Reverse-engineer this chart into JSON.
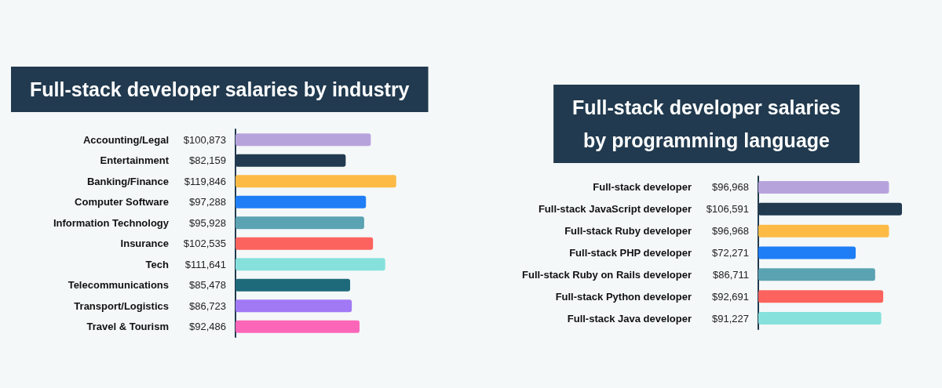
{
  "chart_data": [
    {
      "type": "bar",
      "orientation": "horizontal",
      "title": "Full-stack developer salaries by industry",
      "categories": [
        "Accounting/Legal",
        "Entertainment",
        "Banking/Finance",
        "Computer Software",
        "Information Technology",
        "Insurance",
        "Tech",
        "Telecommunications",
        "Transport/Logistics",
        "Travel & Tourism"
      ],
      "values": [
        100873,
        82159,
        119846,
        97288,
        95928,
        102535,
        111641,
        85478,
        86723,
        92486
      ],
      "value_labels": [
        "$100,873",
        "$82,159",
        "$119,846",
        "$97,288",
        "$95,928",
        "$102,535",
        "$111,641",
        "$85,478",
        "$86,723",
        "$92,486"
      ],
      "colors": [
        "#b7a3dc",
        "#213a4f",
        "#fdbb46",
        "#1f7ef6",
        "#5ba3b3",
        "#fd635e",
        "#86e1dd",
        "#1e6a7a",
        "#a179f5",
        "#fb66b8"
      ]
    },
    {
      "type": "bar",
      "orientation": "horizontal",
      "title": "Full-stack developer salaries\nby programming language",
      "categories": [
        "Full-stack developer",
        "Full-stack JavaScript developer",
        "Full-stack Ruby developer",
        "Full-stack PHP developer",
        "Full-stack Ruby on Rails developer",
        "Full-stack Python developer",
        "Full-stack Java developer"
      ],
      "values": [
        96968,
        106591,
        96968,
        72271,
        86711,
        92691,
        91227
      ],
      "value_labels": [
        "$96,968",
        "$106,591",
        "$96,968",
        "$72,271",
        "$86,711",
        "$92,691",
        "$91,227"
      ],
      "colors": [
        "#b7a3dc",
        "#213a4f",
        "#fdbb46",
        "#1f7ef6",
        "#5ba3b3",
        "#fd635e",
        "#86e1dd"
      ]
    }
  ]
}
